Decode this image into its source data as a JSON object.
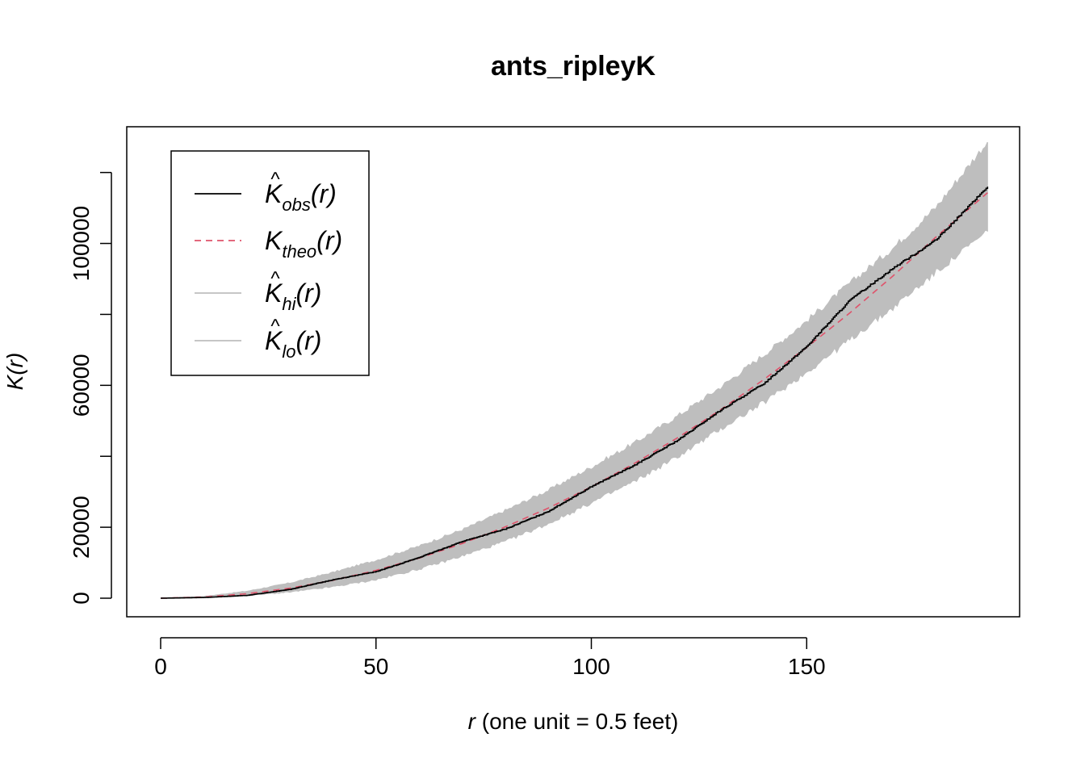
{
  "chart_data": {
    "type": "line",
    "title": "ants_ripleyK",
    "xlabel_italic": "r",
    "xlabel_rest": " (one unit = 0.5 feet)",
    "ylabel": "K(r)",
    "xlim": [
      0,
      192
    ],
    "ylim": [
      0,
      125000
    ],
    "xticks": [
      0,
      50,
      100,
      150
    ],
    "yticks": [
      0,
      20000,
      60000,
      100000
    ],
    "ytick_labels": [
      "0",
      "20000",
      "60000",
      "100000"
    ],
    "grid": false,
    "legend_position": "top-left",
    "legend": [
      {
        "key": "obs",
        "base": "K",
        "hat": true,
        "sub": "obs",
        "suffix": "(r)",
        "color": "#000000",
        "dash": "solid"
      },
      {
        "key": "theo",
        "base": "K",
        "hat": false,
        "sub": "theo",
        "suffix": "(r)",
        "color": "#DF536B",
        "dash": "dashed"
      },
      {
        "key": "hi",
        "base": "K",
        "hat": true,
        "sub": "hi",
        "suffix": "(r)",
        "color": "#BEBEBE",
        "dash": "solid"
      },
      {
        "key": "lo",
        "base": "K",
        "hat": true,
        "sub": "lo",
        "suffix": "(r)",
        "color": "#BEBEBE",
        "dash": "solid"
      }
    ],
    "r": [
      0,
      10,
      20,
      30,
      40,
      50,
      60,
      70,
      80,
      90,
      100,
      110,
      120,
      130,
      140,
      150,
      160,
      170,
      180,
      192
    ],
    "series": [
      {
        "name": "obs",
        "values": [
          0,
          200,
          800,
          2500,
          5200,
          7500,
          11500,
          16000,
          19500,
          24500,
          31500,
          37500,
          44500,
          53000,
          60500,
          71000,
          84000,
          93000,
          101000,
          116000
        ]
      },
      {
        "name": "theo",
        "values": [
          0,
          320,
          1260,
          2830,
          5030,
          7850,
          11300,
          15400,
          20100,
          25400,
          31400,
          38000,
          45200,
          53100,
          61600,
          70700,
          80400,
          90800,
          101800,
          114300
        ]
      },
      {
        "name": "hi",
        "values": [
          0,
          450,
          1900,
          4200,
          7200,
          10600,
          14600,
          19200,
          24600,
          30300,
          36800,
          43600,
          51200,
          59400,
          68400,
          78000,
          88600,
          98500,
          110000,
          128500
        ]
      },
      {
        "name": "lo",
        "values": [
          0,
          180,
          800,
          1800,
          3300,
          5300,
          8300,
          12000,
          16100,
          21100,
          27000,
          33000,
          40000,
          47800,
          55300,
          63800,
          73000,
          82000,
          92000,
          103500
        ]
      }
    ]
  }
}
